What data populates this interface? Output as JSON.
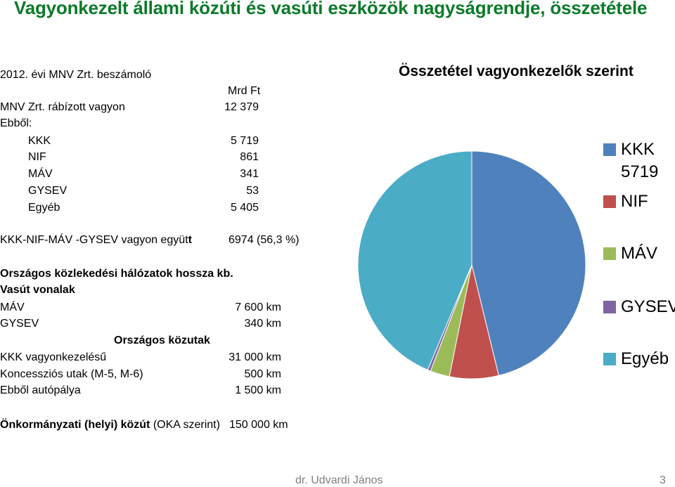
{
  "page": {
    "title": "Vagyonkezelt  állami közúti és vasúti eszközök  nagyságrendje, összetétele",
    "footer_author": "dr. Udvardi János",
    "page_number": "3"
  },
  "report": {
    "source": "2012. évi MNV Zrt. beszámoló",
    "unit": "Mrd Ft",
    "total_label": "MNV Zrt. rábízott vagyon",
    "total_value": "12 379",
    "of_which": "Ebből:",
    "items": [
      {
        "label": "KKK",
        "value": "5 719"
      },
      {
        "label": "NIF",
        "value": "861"
      },
      {
        "label": "MÁV",
        "value": "341"
      },
      {
        "label": "GYSEV",
        "value": "53"
      },
      {
        "label": "Egyéb",
        "value": "5 405"
      }
    ],
    "combined_label_pre": "KKK-NIF-MÁV -GYSEV vagyon  együt",
    "combined_label_bold": "t",
    "combined_value": "6974  (56,3 %)"
  },
  "network": {
    "heading": "Országos közlekedési hálózatok hossza kb.",
    "rail_heading": "Vasút vonalak",
    "rail_items": [
      {
        "label": "MÁV",
        "value": "7 600 km"
      },
      {
        "label": "GYSEV",
        "value": "340 km"
      }
    ],
    "road_heading": "Országos közutak",
    "road_items": [
      {
        "label": "KKK vagyonkezelésű",
        "value": "31 000 km"
      },
      {
        "label": "Koncessziós utak (M-5, M-6)",
        "value": "500 km"
      },
      {
        "label": "Ebből autópálya",
        "value": "1 500 km"
      }
    ],
    "local_label_bold": "Önkormányzati (helyi) közút",
    "local_label_rest": " (OKA szerint)",
    "local_value": "150 000 km"
  },
  "chart_data": {
    "type": "pie",
    "title": "Összetétel vagyonkezelők szerint",
    "legend_position": "right",
    "categories": [
      "KKK",
      "NIF",
      "MÁV",
      "GYSEV",
      "Egyéb"
    ],
    "values": [
      5719,
      861,
      341,
      53,
      5405
    ],
    "colors": [
      "#4f81bd",
      "#c0504d",
      "#9bbb59",
      "#8064a2",
      "#4bacc6"
    ],
    "data_labels": [
      {
        "category": "KKK",
        "text": "5719"
      }
    ]
  }
}
